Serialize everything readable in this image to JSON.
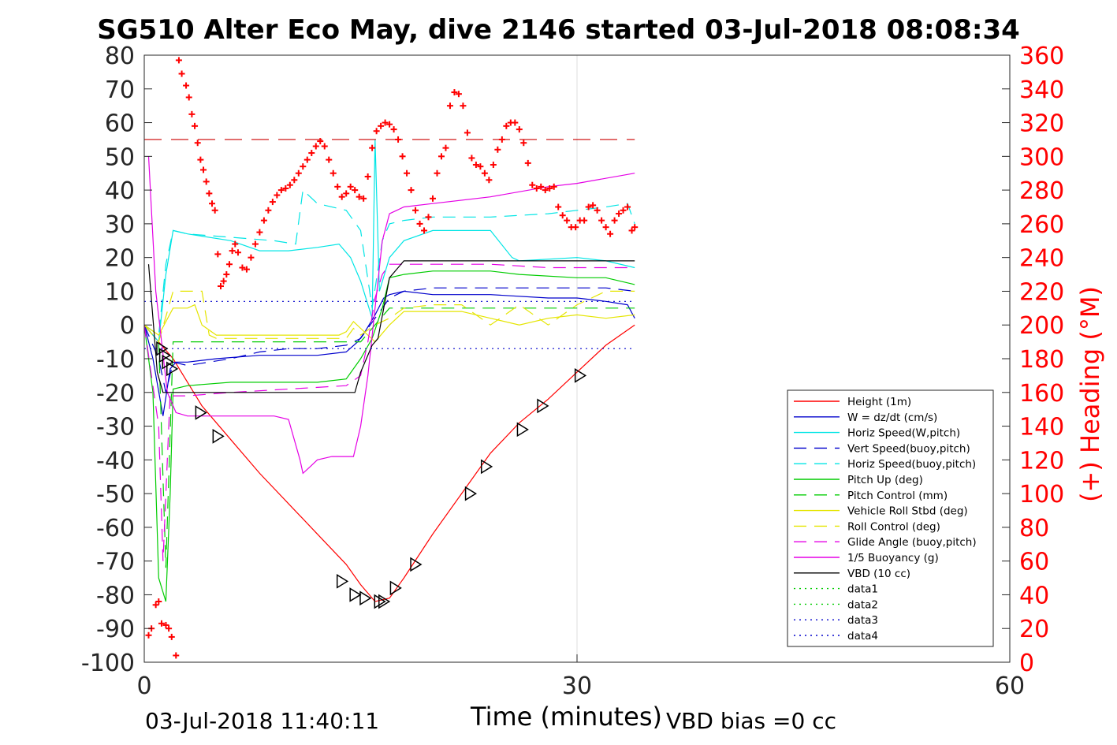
{
  "chart_data": {
    "type": "line",
    "title": "SG510 Alter Eco May, dive 2146 started 03-Jul-2018 08:08:34",
    "xlabel": "Time (minutes)",
    "ylabel": "",
    "y2label": "(+) Heading (°M)",
    "xlim": [
      0,
      60
    ],
    "ylim": [
      -100,
      80
    ],
    "y2lim": [
      0,
      360
    ],
    "xticks": [
      0,
      30,
      60
    ],
    "yticks": [
      -100,
      -90,
      -80,
      -70,
      -60,
      -50,
      -40,
      -30,
      -20,
      -10,
      0,
      10,
      20,
      30,
      40,
      50,
      60,
      70,
      80
    ],
    "y2ticks": [
      0,
      20,
      40,
      60,
      80,
      100,
      120,
      140,
      160,
      180,
      200,
      220,
      240,
      260,
      280,
      300,
      320,
      340,
      360
    ],
    "grid": "x-only",
    "legend_position": "lower-right",
    "annotations": {
      "start_time": "03-Jul-2018 11:40:11",
      "vbd_bias": "VBD bias =0 cc"
    },
    "series": [
      {
        "name": "Height (1m)",
        "color": "#ff0000",
        "style": "solid",
        "x": [
          0,
          1,
          2,
          3,
          4,
          5,
          6,
          8,
          10,
          12,
          14,
          15,
          16,
          17,
          18,
          20,
          22,
          24,
          26,
          28,
          30,
          32,
          34
        ],
        "y": [
          0,
          -5,
          -10,
          -17,
          -24,
          -29,
          -34,
          -44,
          -53,
          -62,
          -71,
          -77,
          -82,
          -81,
          -75,
          -62,
          -50,
          -38,
          -29,
          -22,
          -14,
          -6,
          0
        ]
      },
      {
        "name": "W = dz/dt (cm/s)",
        "color": "#0000cc",
        "style": "solid",
        "x": [
          0,
          0.6,
          1.3,
          1.8,
          2.2,
          3,
          5,
          8,
          10,
          12,
          14,
          14.8,
          15.3,
          16,
          16.6,
          17,
          18,
          20,
          24,
          28,
          30,
          32,
          33.5,
          34
        ],
        "y": [
          0,
          -10,
          -27,
          -13,
          -11,
          -11,
          -10,
          -9,
          -9,
          -9,
          -8,
          -5,
          -2,
          3,
          8,
          9,
          10,
          9,
          9,
          8,
          8,
          7,
          6,
          2
        ]
      },
      {
        "name": "Horiz Speed(W,pitch)",
        "color": "#00e5e5",
        "style": "solid",
        "x": [
          0,
          1,
          1.5,
          2,
          3,
          6,
          8,
          10,
          12,
          13.5,
          14.3,
          15,
          15.8,
          16,
          16.3,
          17,
          18,
          20,
          24,
          25.5,
          26,
          30,
          32,
          34
        ],
        "y": [
          0,
          -5,
          15,
          28,
          27,
          25,
          22,
          22,
          23,
          24,
          20,
          13,
          2,
          55,
          10,
          20,
          25,
          28,
          28,
          20,
          19,
          20,
          19,
          17
        ]
      },
      {
        "name": "Vert Speed(buoy,pitch)",
        "color": "#0000cc",
        "style": "dashed",
        "x": [
          0,
          1,
          1.5,
          2,
          3,
          6,
          8,
          10,
          12,
          14,
          15,
          16,
          17,
          18,
          20,
          24,
          28,
          30,
          32,
          34
        ],
        "y": [
          0,
          -10,
          -20,
          -11,
          -12,
          -10,
          -8,
          -7,
          -7,
          -6,
          -4,
          2,
          8,
          10,
          11,
          11,
          11,
          11,
          11,
          10
        ]
      },
      {
        "name": "Horiz Speed(buoy,pitch)",
        "color": "#00e5e5",
        "style": "dashed",
        "x": [
          0,
          1,
          1.5,
          2,
          3,
          6,
          9,
          10.5,
          11,
          12,
          14,
          15,
          15.8,
          16.5,
          17,
          18,
          20,
          24,
          28,
          30,
          32,
          33.5,
          34
        ],
        "y": [
          0,
          -3,
          18,
          28,
          27,
          26,
          25,
          24,
          40,
          36,
          34,
          28,
          5,
          25,
          30,
          31,
          32,
          32,
          33,
          34,
          35,
          36,
          30
        ]
      },
      {
        "name": "Pitch Up (deg)",
        "color": "#00cc00",
        "style": "solid",
        "x": [
          0,
          0.6,
          1,
          1.5,
          1.8,
          2,
          3,
          6,
          10,
          12,
          14,
          15,
          15.8,
          16.5,
          17,
          18,
          20,
          24,
          26,
          30,
          32,
          34
        ],
        "y": [
          0,
          -20,
          -75,
          -82,
          -50,
          -19,
          -18,
          -17,
          -17,
          -17,
          -16,
          -10,
          -4,
          5,
          14,
          15,
          16,
          16,
          15,
          14,
          14,
          12
        ]
      },
      {
        "name": "Pitch Control (mm)",
        "color": "#00cc00",
        "style": "dashed",
        "x": [
          0,
          1,
          1.5,
          2,
          2.5,
          14.5,
          15,
          16,
          17,
          18,
          34
        ],
        "y": [
          0,
          -5,
          -72,
          -5,
          -5,
          -5,
          -5,
          0,
          5,
          5,
          5
        ]
      },
      {
        "name": "Vehicle Roll Stbd (deg)",
        "color": "#e5e500",
        "style": "solid",
        "x": [
          0,
          1,
          2,
          3,
          3.5,
          4,
          5,
          8,
          12,
          13.5,
          14,
          14.5,
          15,
          16,
          17,
          18,
          20,
          22,
          24,
          26,
          28,
          30,
          32,
          34
        ],
        "y": [
          0,
          -3,
          5,
          5,
          6,
          0,
          -3,
          -3,
          -3,
          -3,
          -2,
          1,
          -1,
          -5,
          0,
          4,
          4,
          4,
          2,
          0,
          2,
          3,
          2,
          3
        ]
      },
      {
        "name": "Roll Control (deg)",
        "color": "#e5e500",
        "style": "dashed",
        "x": [
          0,
          1,
          2,
          4,
          4.5,
          5,
          14,
          14.5,
          15,
          16,
          17,
          18,
          20,
          22,
          24,
          26,
          28,
          30,
          32,
          34
        ],
        "y": [
          0,
          -5,
          10,
          10,
          -3,
          -4,
          -4,
          -1,
          -3,
          0,
          2,
          5,
          6,
          6,
          0,
          6,
          0,
          6,
          10,
          10
        ]
      },
      {
        "name": "Glide Angle (buoy,pitch)",
        "color": "#e500e5",
        "style": "dashed",
        "x": [
          0,
          1,
          1.3,
          1.8,
          2,
          3,
          6,
          10,
          14,
          15,
          15.5,
          16,
          16.5,
          17,
          18,
          20,
          24,
          28,
          30,
          34
        ],
        "y": [
          0,
          -30,
          -70,
          -20,
          -21,
          -21,
          -20,
          -19,
          -18,
          -15,
          -5,
          8,
          15,
          18,
          18,
          18,
          18,
          17,
          17,
          17
        ]
      },
      {
        "name": "1/5 Buoyancy (g)",
        "color": "#e500e5",
        "style": "solid",
        "x": [
          0.3,
          0.8,
          1.2,
          1.6,
          2.2,
          3,
          6,
          9,
          10,
          10.8,
          11,
          11.5,
          12,
          13,
          14,
          14.5,
          15,
          15.5,
          16,
          16.5,
          17,
          17.5,
          18,
          20,
          24,
          28,
          30,
          34
        ],
        "y": [
          50,
          10,
          -5,
          -20,
          -26,
          -27,
          -27,
          -27,
          -28,
          -40,
          -44,
          -42,
          -40,
          -39,
          -39,
          -39,
          -30,
          -15,
          5,
          25,
          33,
          34,
          35,
          36,
          38,
          41,
          42,
          45
        ]
      },
      {
        "name": "VBD (10 cc)",
        "color": "#000000",
        "style": "solid",
        "x": [
          0.3,
          0.9,
          1.3,
          1.6,
          2,
          3,
          6,
          10,
          14.6,
          15,
          15.8,
          16.2,
          17,
          18,
          20,
          24,
          28,
          30,
          34
        ],
        "y": [
          18,
          -14,
          -20,
          -20,
          -20,
          -20,
          -20,
          -20,
          -20,
          -14,
          -6,
          -4,
          14,
          19,
          19,
          19,
          19,
          19,
          19
        ]
      },
      {
        "name": "data1",
        "color": "#00cc00",
        "style": "dotted",
        "x": [],
        "y": []
      },
      {
        "name": "data2",
        "color": "#00cc00",
        "style": "dotted",
        "x": [],
        "y": []
      },
      {
        "name": "data3",
        "color": "#0000cc",
        "style": "dotted",
        "x": [
          0,
          34
        ],
        "y": [
          7,
          7
        ]
      },
      {
        "name": "data4",
        "color": "#0000cc",
        "style": "dotted",
        "x": [
          0,
          34
        ],
        "y": [
          -7,
          -7
        ]
      }
    ],
    "reference_line": {
      "color": "#cc0000",
      "style": "dashed",
      "x": [
        0,
        34
      ],
      "y": [
        55,
        55
      ]
    },
    "markers_triangle": {
      "color": "#000000",
      "x": [
        1.2,
        1.4,
        1.6,
        1.9,
        3.9,
        5.1,
        13.7,
        14.6,
        15.3,
        16.3,
        16.6,
        17.4,
        18.8,
        22.6,
        23.7,
        26.2,
        27.6,
        30.2
      ],
      "y": [
        -7,
        -9,
        -11,
        -13,
        -26,
        -33,
        -76,
        -80,
        -81,
        -82,
        -82,
        -78,
        -71,
        -50,
        -42,
        -31,
        -24,
        -15
      ]
    },
    "heading": {
      "name": "(+) Heading (°M)",
      "color": "#ff0000",
      "marker": "+",
      "x": [
        0.3,
        0.5,
        0.8,
        1.0,
        1.2,
        1.5,
        1.7,
        1.9,
        2.2,
        2.4,
        2.6,
        2.9,
        3.1,
        3.3,
        3.5,
        3.7,
        3.9,
        4.1,
        4.3,
        4.5,
        4.7,
        4.9,
        5.1,
        5.3,
        5.5,
        5.7,
        5.9,
        6.1,
        6.3,
        6.5,
        6.8,
        7.1,
        7.4,
        7.7,
        8.0,
        8.3,
        8.6,
        8.9,
        9.2,
        9.5,
        9.8,
        10.1,
        10.4,
        10.7,
        11.0,
        11.3,
        11.6,
        11.9,
        12.2,
        12.5,
        12.8,
        13.1,
        13.4,
        13.7,
        14.0,
        14.3,
        14.6,
        14.9,
        15.2,
        15.5,
        15.8,
        16.1,
        16.4,
        16.7,
        17.0,
        17.3,
        17.6,
        17.9,
        18.2,
        18.5,
        18.8,
        19.1,
        19.4,
        19.7,
        20.0,
        20.3,
        20.6,
        20.9,
        21.2,
        21.5,
        21.8,
        22.1,
        22.4,
        22.7,
        23.0,
        23.3,
        23.6,
        23.9,
        24.2,
        24.5,
        24.8,
        25.1,
        25.4,
        25.7,
        26.0,
        26.3,
        26.6,
        26.9,
        27.2,
        27.5,
        27.8,
        28.1,
        28.4,
        28.7,
        29.0,
        29.3,
        29.6,
        29.9,
        30.2,
        30.5,
        30.8,
        31.1,
        31.4,
        31.7,
        32.0,
        32.3,
        32.6,
        32.9,
        33.2,
        33.5,
        33.8,
        34.0
      ],
      "y": [
        16,
        20,
        34,
        36,
        23,
        22,
        20,
        15,
        4,
        357,
        349,
        342,
        335,
        325,
        318,
        308,
        298,
        292,
        285,
        278,
        272,
        268,
        242,
        223,
        226,
        230,
        236,
        244,
        248,
        243,
        234,
        233,
        240,
        248,
        255,
        262,
        268,
        273,
        277,
        280,
        281,
        283,
        286,
        290,
        294,
        298,
        302,
        306,
        309,
        306,
        298,
        290,
        282,
        276,
        278,
        282,
        280,
        276,
        275,
        288,
        305,
        315,
        318,
        320,
        319,
        316,
        310,
        300,
        290,
        280,
        268,
        260,
        256,
        264,
        275,
        290,
        300,
        305,
        330,
        338,
        337,
        330,
        314,
        299,
        295,
        294,
        290,
        286,
        295,
        304,
        310,
        318,
        320,
        320,
        316,
        308,
        296,
        283,
        281,
        282,
        280,
        281,
        282,
        270,
        265,
        262,
        258,
        258,
        262,
        262,
        270,
        271,
        268,
        262,
        258,
        254,
        262,
        266,
        268,
        270,
        256,
        258
      ]
    }
  }
}
